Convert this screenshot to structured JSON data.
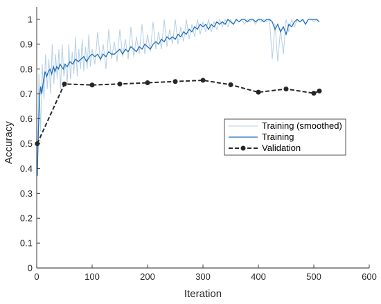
{
  "chart_data": {
    "type": "line",
    "title": "",
    "xlabel": "Iteration",
    "ylabel": "Accuracy",
    "xlim": [
      0,
      600
    ],
    "ylim": [
      0,
      1.05
    ],
    "xticks": [
      0,
      100,
      200,
      300,
      400,
      500,
      600
    ],
    "xtick_labels": [
      "0",
      "100",
      "200",
      "300",
      "400",
      "500",
      "600"
    ],
    "yticks": [
      0,
      0.1,
      0.2,
      0.3,
      0.4,
      0.5,
      0.6,
      0.7,
      0.8,
      0.9,
      1
    ],
    "ytick_labels": [
      "0",
      "0.1",
      "0.2",
      "0.3",
      "0.4",
      "0.5",
      "0.6",
      "0.7",
      "0.8",
      "0.9",
      "1"
    ],
    "grid": false,
    "legend_position": "right",
    "series": [
      {
        "name": "Training (smoothed)",
        "style": "thin light line",
        "color": "#b4cfe6",
        "x": [
          1,
          4,
          7,
          10,
          13,
          16,
          19,
          22,
          25,
          28,
          31,
          34,
          37,
          40,
          43,
          46,
          49,
          52,
          55,
          58,
          61,
          64,
          67,
          70,
          73,
          76,
          79,
          82,
          85,
          88,
          91,
          94,
          97,
          100,
          105,
          110,
          115,
          120,
          125,
          130,
          135,
          140,
          145,
          150,
          155,
          160,
          165,
          170,
          175,
          180,
          185,
          190,
          195,
          200,
          205,
          210,
          215,
          220,
          225,
          230,
          235,
          240,
          245,
          250,
          255,
          260,
          265,
          270,
          275,
          280,
          285,
          290,
          295,
          300,
          305,
          310,
          315,
          320,
          325,
          330,
          335,
          340,
          345,
          350,
          355,
          360,
          365,
          370,
          375,
          380,
          385,
          390,
          395,
          400,
          405,
          410,
          415,
          420,
          425,
          430,
          435,
          440,
          445,
          450,
          455,
          460,
          465,
          470,
          475,
          480,
          485,
          490,
          495,
          500,
          505,
          510
        ],
        "y": [
          0.38,
          0.78,
          0.55,
          0.82,
          0.68,
          0.86,
          0.72,
          0.84,
          0.7,
          0.9,
          0.74,
          0.86,
          0.76,
          0.88,
          0.72,
          0.9,
          0.77,
          0.82,
          0.74,
          0.9,
          0.76,
          0.87,
          0.78,
          0.93,
          0.77,
          0.88,
          0.8,
          0.92,
          0.79,
          0.89,
          0.8,
          0.94,
          0.81,
          0.88,
          0.82,
          0.95,
          0.83,
          0.9,
          0.8,
          0.96,
          0.84,
          0.91,
          0.83,
          0.96,
          0.85,
          0.92,
          0.84,
          0.97,
          0.85,
          0.93,
          0.86,
          0.98,
          0.86,
          0.94,
          0.87,
          0.99,
          0.88,
          0.95,
          0.88,
          1.0,
          0.89,
          0.96,
          0.9,
          1.0,
          0.9,
          0.97,
          0.91,
          1.0,
          0.92,
          0.98,
          0.93,
          1.0,
          0.94,
          0.99,
          0.95,
          1.0,
          0.95,
          0.99,
          0.96,
          1.0,
          0.97,
          1.0,
          0.97,
          1.0,
          0.98,
          1.0,
          0.99,
          1.0,
          0.98,
          1.0,
          0.99,
          1.0,
          0.98,
          1.0,
          0.99,
          1.0,
          0.99,
          1.0,
          0.84,
          0.98,
          0.83,
          0.96,
          0.86,
          1.0,
          0.95,
          1.0,
          0.97,
          1.0,
          0.99,
          1.0,
          0.98,
          1.0,
          1.0,
          0.99,
          1.0,
          0.99
        ]
      },
      {
        "name": "Training",
        "style": "solid line",
        "color": "#1f6eb8",
        "x": [
          1,
          3,
          5,
          7,
          9,
          12,
          15,
          18,
          21,
          24,
          27,
          30,
          33,
          36,
          39,
          42,
          45,
          48,
          51,
          55,
          60,
          65,
          70,
          75,
          80,
          85,
          90,
          95,
          100,
          105,
          110,
          115,
          120,
          125,
          130,
          135,
          140,
          145,
          150,
          155,
          160,
          165,
          170,
          175,
          180,
          185,
          190,
          195,
          200,
          205,
          210,
          215,
          220,
          225,
          230,
          235,
          240,
          245,
          250,
          255,
          260,
          265,
          270,
          275,
          280,
          285,
          290,
          295,
          300,
          305,
          310,
          315,
          320,
          325,
          330,
          335,
          340,
          345,
          350,
          355,
          360,
          365,
          370,
          375,
          380,
          385,
          390,
          395,
          400,
          405,
          410,
          415,
          420,
          425,
          430,
          435,
          440,
          445,
          450,
          455,
          460,
          465,
          470,
          475,
          480,
          485,
          490,
          495,
          500,
          505,
          510
        ],
        "y": [
          0.37,
          0.55,
          0.68,
          0.73,
          0.7,
          0.75,
          0.79,
          0.77,
          0.79,
          0.8,
          0.78,
          0.81,
          0.79,
          0.81,
          0.8,
          0.82,
          0.81,
          0.8,
          0.82,
          0.81,
          0.83,
          0.82,
          0.84,
          0.83,
          0.84,
          0.85,
          0.83,
          0.85,
          0.86,
          0.85,
          0.86,
          0.84,
          0.86,
          0.85,
          0.87,
          0.86,
          0.86,
          0.87,
          0.88,
          0.86,
          0.88,
          0.87,
          0.89,
          0.88,
          0.87,
          0.89,
          0.88,
          0.9,
          0.89,
          0.88,
          0.9,
          0.91,
          0.9,
          0.92,
          0.91,
          0.93,
          0.92,
          0.93,
          0.92,
          0.94,
          0.93,
          0.95,
          0.94,
          0.96,
          0.95,
          0.97,
          0.96,
          0.98,
          0.97,
          0.98,
          0.96,
          0.98,
          0.97,
          0.99,
          0.98,
          0.99,
          0.98,
          1.0,
          0.99,
          0.98,
          1.0,
          0.99,
          1.0,
          1.0,
          0.99,
          1.0,
          1.0,
          0.99,
          1.0,
          1.0,
          0.99,
          1.0,
          1.0,
          0.99,
          0.96,
          0.98,
          0.95,
          0.97,
          0.94,
          0.98,
          0.97,
          0.99,
          1.0,
          0.99,
          1.0,
          0.98,
          1.0,
          1.0,
          1.0,
          1.0,
          0.99
        ]
      },
      {
        "name": "Validation",
        "style": "dashed line with markers",
        "color": "#262626",
        "x": [
          1,
          50,
          100,
          150,
          200,
          250,
          300,
          350,
          400,
          450,
          500,
          510
        ],
        "y": [
          0.5,
          0.74,
          0.736,
          0.74,
          0.745,
          0.75,
          0.755,
          0.737,
          0.707,
          0.72,
          0.703,
          0.712
        ]
      }
    ]
  }
}
